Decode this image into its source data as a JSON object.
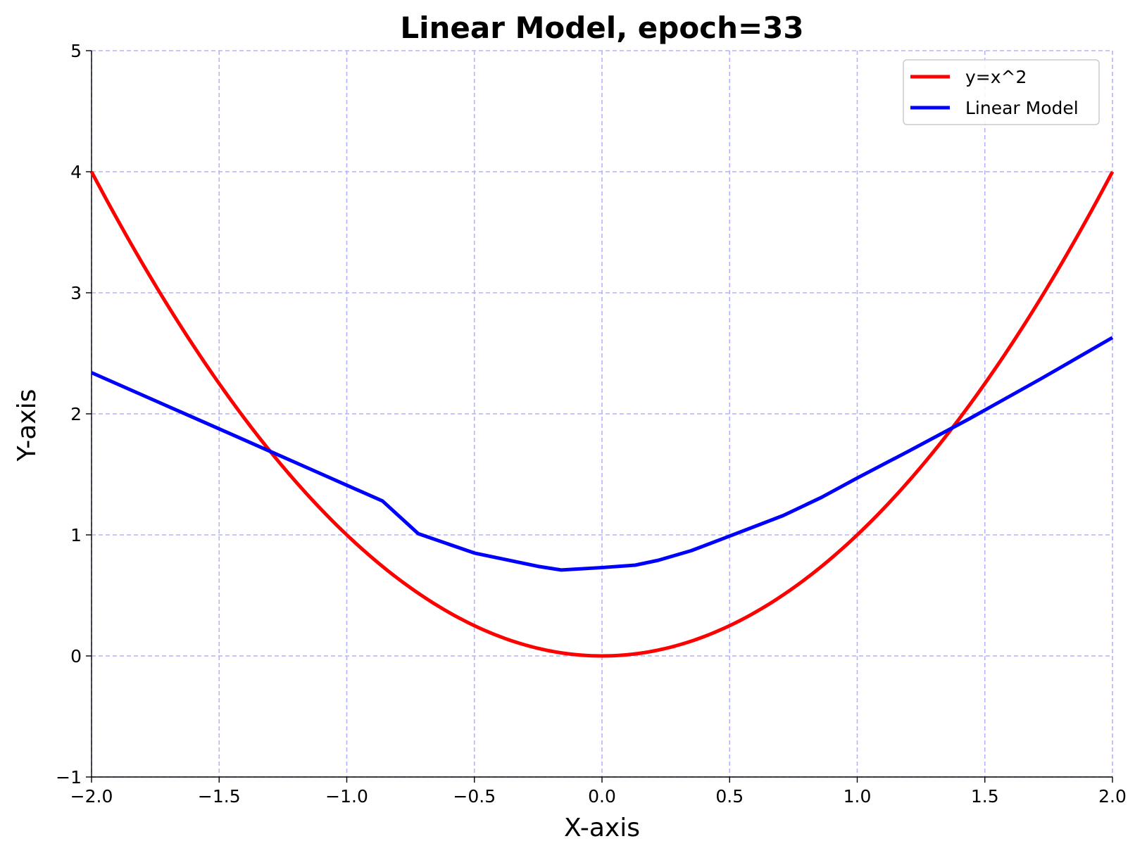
{
  "chart_data": {
    "type": "line",
    "title": "Linear Model, epoch=33",
    "xlabel": "X-axis",
    "ylabel": "Y-axis",
    "xlim": [
      -2.0,
      2.0
    ],
    "ylim": [
      -1,
      5
    ],
    "x_ticks": [
      -2.0,
      -1.5,
      -1.0,
      -0.5,
      0.0,
      0.5,
      1.0,
      1.5,
      2.0
    ],
    "x_tick_labels": [
      "−2.0",
      "−1.5",
      "−1.0",
      "−0.5",
      "0.0",
      "0.5",
      "1.0",
      "1.5",
      "2.0"
    ],
    "y_ticks": [
      -1,
      0,
      1,
      2,
      3,
      4,
      5
    ],
    "y_tick_labels": [
      "−1",
      "0",
      "1",
      "2",
      "3",
      "4",
      "5"
    ],
    "grid": true,
    "grid_color": "#b3b3ff",
    "legend_position": "top-right",
    "series": [
      {
        "name": "y=x^2",
        "color": "#ff0000",
        "function": "x^2",
        "x_range": [
          -2.0,
          2.0
        ]
      },
      {
        "name": "Linear Model",
        "color": "#0000ff",
        "x": [
          -2.0,
          -1.72,
          -1.44,
          -1.15,
          -0.86,
          -0.72,
          -0.5,
          -0.25,
          -0.16,
          0.0,
          0.13,
          0.22,
          0.35,
          0.5,
          0.71,
          0.86,
          1.0,
          1.2,
          1.44,
          1.72,
          2.0
        ],
        "y": [
          2.34,
          2.08,
          1.82,
          1.55,
          1.28,
          1.01,
          0.85,
          0.74,
          0.71,
          0.73,
          0.75,
          0.79,
          0.87,
          0.99,
          1.16,
          1.31,
          1.47,
          1.69,
          1.96,
          2.29,
          2.63
        ]
      }
    ]
  }
}
